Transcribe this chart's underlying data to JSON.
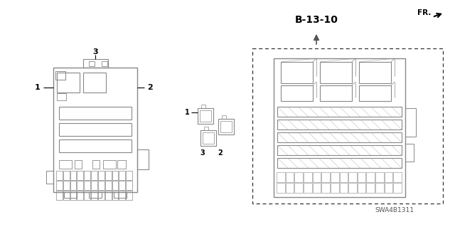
{
  "bg_color": "#ffffff",
  "title_label": "B-13-10",
  "part_code": "SWA4B1311",
  "fr_label": "FR.",
  "line_color": "#888888",
  "dark_color": "#444444",
  "label_color": "#111111"
}
